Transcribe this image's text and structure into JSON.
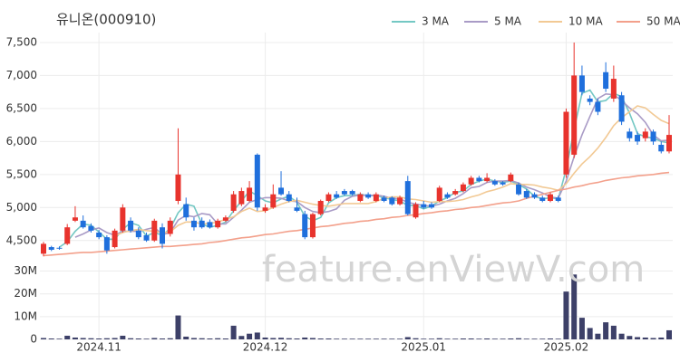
{
  "chart_data": {
    "type": "candlestick",
    "title": "유니온(000910)",
    "watermark": "feature.enViewV.com",
    "categories": [
      null,
      null,
      null,
      null,
      null,
      null,
      null,
      "2024.11",
      null,
      null,
      null,
      null,
      null,
      null,
      null,
      null,
      null,
      null,
      null,
      null,
      null,
      null,
      null,
      null,
      null,
      null,
      null,
      null,
      "2024.12",
      null,
      null,
      null,
      null,
      null,
      null,
      null,
      null,
      null,
      null,
      null,
      null,
      null,
      null,
      null,
      null,
      null,
      null,
      null,
      "2025.01",
      null,
      null,
      null,
      null,
      null,
      null,
      null,
      null,
      null,
      null,
      null,
      null,
      null,
      null,
      null,
      null,
      null,
      "2025.02",
      null,
      null,
      null,
      null,
      null,
      null,
      null,
      null,
      null,
      null,
      null,
      null,
      null
    ],
    "up_color": "#e8332d",
    "down_color": "#1f6fdc",
    "ohlc": [
      [
        4300,
        4480,
        4260,
        4450
      ],
      [
        4400,
        4420,
        4340,
        4360
      ],
      [
        4390,
        4410,
        4360,
        4380
      ],
      [
        4450,
        4750,
        4430,
        4700
      ],
      [
        4800,
        5020,
        4780,
        4850
      ],
      [
        4800,
        4880,
        4680,
        4700
      ],
      [
        4720,
        4760,
        4620,
        4650
      ],
      [
        4620,
        4660,
        4520,
        4550
      ],
      [
        4550,
        4580,
        4300,
        4350
      ],
      [
        4400,
        4680,
        4380,
        4650
      ],
      [
        4650,
        5050,
        4620,
        5000
      ],
      [
        4800,
        4850,
        4620,
        4650
      ],
      [
        4650,
        4700,
        4520,
        4550
      ],
      [
        4580,
        4620,
        4480,
        4500
      ],
      [
        4500,
        4830,
        4480,
        4800
      ],
      [
        4700,
        4760,
        4380,
        4450
      ],
      [
        4600,
        4850,
        4560,
        4800
      ],
      [
        5100,
        6200,
        5050,
        5500
      ],
      [
        5050,
        5150,
        4800,
        4850
      ],
      [
        4800,
        4850,
        4650,
        4700
      ],
      [
        4800,
        4850,
        4680,
        4700
      ],
      [
        4780,
        4820,
        4680,
        4700
      ],
      [
        4700,
        4830,
        4680,
        4800
      ],
      [
        4800,
        4880,
        4780,
        4850
      ],
      [
        4950,
        5250,
        4920,
        5200
      ],
      [
        5050,
        5300,
        5020,
        5250
      ],
      [
        5100,
        5400,
        5080,
        5300
      ],
      [
        5800,
        5820,
        4950,
        5000
      ],
      [
        4950,
        5050,
        4920,
        5000
      ],
      [
        5000,
        5350,
        4980,
        5200
      ],
      [
        5300,
        5550,
        5180,
        5200
      ],
      [
        5200,
        5250,
        5080,
        5100
      ],
      [
        5000,
        5150,
        4930,
        4950
      ],
      [
        4900,
        4950,
        4520,
        4550
      ],
      [
        4550,
        4920,
        4530,
        4900
      ],
      [
        4900,
        5120,
        4880,
        5100
      ],
      [
        5100,
        5230,
        5080,
        5200
      ],
      [
        5200,
        5250,
        5130,
        5150
      ],
      [
        5250,
        5280,
        5180,
        5200
      ],
      [
        5250,
        5270,
        5180,
        5200
      ],
      [
        5100,
        5230,
        5080,
        5200
      ],
      [
        5200,
        5230,
        5130,
        5150
      ],
      [
        5100,
        5230,
        5080,
        5200
      ],
      [
        5150,
        5180,
        5080,
        5100
      ],
      [
        5150,
        5170,
        5030,
        5050
      ],
      [
        5050,
        5180,
        5030,
        5150
      ],
      [
        5400,
        5480,
        4880,
        4900
      ],
      [
        4850,
        5080,
        4830,
        5050
      ],
      [
        5050,
        5100,
        4980,
        5000
      ],
      [
        5050,
        5080,
        4980,
        5000
      ],
      [
        5100,
        5330,
        5080,
        5300
      ],
      [
        5200,
        5230,
        5130,
        5150
      ],
      [
        5200,
        5280,
        5180,
        5250
      ],
      [
        5250,
        5380,
        5230,
        5350
      ],
      [
        5350,
        5480,
        5330,
        5450
      ],
      [
        5450,
        5480,
        5380,
        5400
      ],
      [
        5400,
        5520,
        5380,
        5450
      ],
      [
        5400,
        5430,
        5330,
        5350
      ],
      [
        5380,
        5400,
        5330,
        5350
      ],
      [
        5400,
        5530,
        5380,
        5500
      ],
      [
        5350,
        5380,
        5180,
        5200
      ],
      [
        5250,
        5280,
        5130,
        5150
      ],
      [
        5200,
        5230,
        5130,
        5150
      ],
      [
        5150,
        5180,
        5080,
        5100
      ],
      [
        5100,
        5230,
        5080,
        5200
      ],
      [
        5150,
        5180,
        5080,
        5100
      ],
      [
        5500,
        6500,
        5450,
        6450
      ],
      [
        5800,
        7500,
        5750,
        7000
      ],
      [
        7000,
        7150,
        6700,
        6750
      ],
      [
        6650,
        6700,
        6550,
        6600
      ],
      [
        6600,
        6650,
        6400,
        6450
      ],
      [
        7050,
        7200,
        6750,
        6800
      ],
      [
        6650,
        7150,
        6600,
        6950
      ],
      [
        6700,
        6750,
        6250,
        6300
      ],
      [
        6150,
        6200,
        6000,
        6050
      ],
      [
        6100,
        6150,
        5950,
        6000
      ],
      [
        6050,
        6200,
        6000,
        6150
      ],
      [
        6150,
        6180,
        5950,
        6000
      ],
      [
        5950,
        6000,
        5820,
        5850
      ],
      [
        5850,
        6400,
        5820,
        6100
      ]
    ],
    "series": [
      {
        "name": "3 MA",
        "color": "#74c8c4",
        "values": [
          null,
          null,
          4400,
          4480,
          4640,
          4750,
          4730,
          4630,
          4520,
          4520,
          4670,
          4770,
          4730,
          4570,
          4620,
          4580,
          4680,
          4920,
          5050,
          5020,
          4750,
          4700,
          4730,
          4780,
          4950,
          5100,
          5250,
          5180,
          5100,
          5070,
          5130,
          5170,
          5080,
          4870,
          4800,
          4850,
          5070,
          5150,
          5180,
          5180,
          5200,
          5180,
          5180,
          5150,
          5120,
          5100,
          5030,
          5030,
          4980,
          5020,
          5100,
          5150,
          5230,
          5250,
          5350,
          5400,
          5430,
          5400,
          5380,
          5400,
          5350,
          5280,
          5170,
          5130,
          5150,
          5130,
          5580,
          6180,
          6730,
          6780,
          6600,
          6620,
          6730,
          6680,
          6430,
          6120,
          6070,
          6050,
          6000,
          5980
        ]
      },
      {
        "name": "5 MA",
        "color": "#a99bc6",
        "values": [
          null,
          null,
          null,
          null,
          4550,
          4600,
          4660,
          4690,
          4620,
          4580,
          4640,
          4640,
          4640,
          4670,
          4700,
          4590,
          4620,
          4810,
          4880,
          4860,
          4910,
          4890,
          4750,
          4750,
          4850,
          4960,
          5080,
          5120,
          5150,
          5150,
          5140,
          5100,
          5090,
          5000,
          4940,
          4920,
          4940,
          4980,
          5110,
          5170,
          5190,
          5180,
          5190,
          5170,
          5140,
          5130,
          5080,
          5050,
          5030,
          5020,
          5050,
          5100,
          5140,
          5210,
          5300,
          5320,
          5380,
          5400,
          5400,
          5410,
          5370,
          5310,
          5270,
          5220,
          5160,
          5140,
          5400,
          5770,
          6100,
          6380,
          6650,
          6720,
          6710,
          6620,
          6510,
          6420,
          6290,
          6100,
          6010,
          6020
        ]
      },
      {
        "name": "10 MA",
        "color": "#f2c994",
        "values": [
          null,
          null,
          null,
          null,
          null,
          null,
          null,
          null,
          null,
          4570,
          4620,
          4650,
          4670,
          4650,
          4640,
          4620,
          4630,
          4730,
          4780,
          4780,
          4750,
          4760,
          4780,
          4820,
          4860,
          4940,
          4990,
          4940,
          4950,
          5000,
          5050,
          5090,
          5110,
          5080,
          5050,
          5030,
          5020,
          5040,
          5060,
          5060,
          5060,
          5060,
          5090,
          5140,
          5160,
          5160,
          5130,
          5120,
          5100,
          5080,
          5090,
          5090,
          5100,
          5120,
          5160,
          5190,
          5240,
          5270,
          5310,
          5360,
          5350,
          5350,
          5340,
          5310,
          5290,
          5260,
          5360,
          5520,
          5660,
          5770,
          5900,
          6060,
          6240,
          6360,
          6450,
          6540,
          6510,
          6410,
          6320,
          6270
        ]
      },
      {
        "name": "50 MA",
        "color": "#f3a08b",
        "values": [
          4270,
          4280,
          4290,
          4300,
          4310,
          4320,
          4320,
          4330,
          4340,
          4350,
          4360,
          4370,
          4380,
          4390,
          4400,
          4410,
          4410,
          4420,
          4430,
          4440,
          4450,
          4470,
          4480,
          4500,
          4520,
          4540,
          4550,
          4570,
          4590,
          4600,
          4620,
          4640,
          4650,
          4670,
          4690,
          4710,
          4720,
          4740,
          4760,
          4770,
          4790,
          4800,
          4820,
          4830,
          4850,
          4860,
          4880,
          4890,
          4910,
          4920,
          4940,
          4950,
          4970,
          4980,
          5000,
          5010,
          5030,
          5050,
          5070,
          5080,
          5100,
          5140,
          5170,
          5200,
          5230,
          5260,
          5280,
          5310,
          5330,
          5360,
          5380,
          5410,
          5430,
          5450,
          5460,
          5480,
          5490,
          5500,
          5520,
          5530
        ]
      }
    ],
    "ylim": [
      4250,
      7650
    ],
    "yticks": [
      {
        "value": 4500,
        "label": "4,500"
      },
      {
        "value": 5000,
        "label": "5,000"
      },
      {
        "value": 5500,
        "label": "5,500"
      },
      {
        "value": 6000,
        "label": "6,000"
      },
      {
        "value": 6500,
        "label": "6,500"
      },
      {
        "value": 7000,
        "label": "7,000"
      },
      {
        "value": 7500,
        "label": "7,500"
      }
    ],
    "grid": true,
    "legend": "top-right",
    "volume": {
      "color": "#3d4068",
      "values": [
        600000,
        400000,
        300000,
        1600000,
        800000,
        600000,
        500000,
        400000,
        500000,
        600000,
        1600000,
        500000,
        400000,
        300000,
        600000,
        400000,
        500000,
        10500000,
        1200000,
        600000,
        500000,
        400000,
        500000,
        400000,
        6000000,
        1500000,
        2500000,
        3000000,
        800000,
        600000,
        700000,
        500000,
        400000,
        800000,
        600000,
        400000,
        400000,
        300000,
        300000,
        300000,
        300000,
        300000,
        300000,
        300000,
        300000,
        300000,
        1000000,
        500000,
        300000,
        300000,
        500000,
        300000,
        300000,
        400000,
        400000,
        300000,
        400000,
        300000,
        300000,
        400000,
        500000,
        300000,
        300000,
        300000,
        400000,
        300000,
        21000000,
        28500000,
        9500000,
        5000000,
        2500000,
        7500000,
        6000000,
        2500000,
        1500000,
        1000000,
        800000,
        600000,
        800000,
        4000000
      ],
      "ylim": [
        0,
        33000000
      ],
      "yticks": [
        0,
        {
          "value": 10000000,
          "label": "10M"
        },
        {
          "value": 20000000,
          "label": "20M"
        },
        {
          "value": 30000000,
          "label": "30M"
        }
      ]
    }
  }
}
